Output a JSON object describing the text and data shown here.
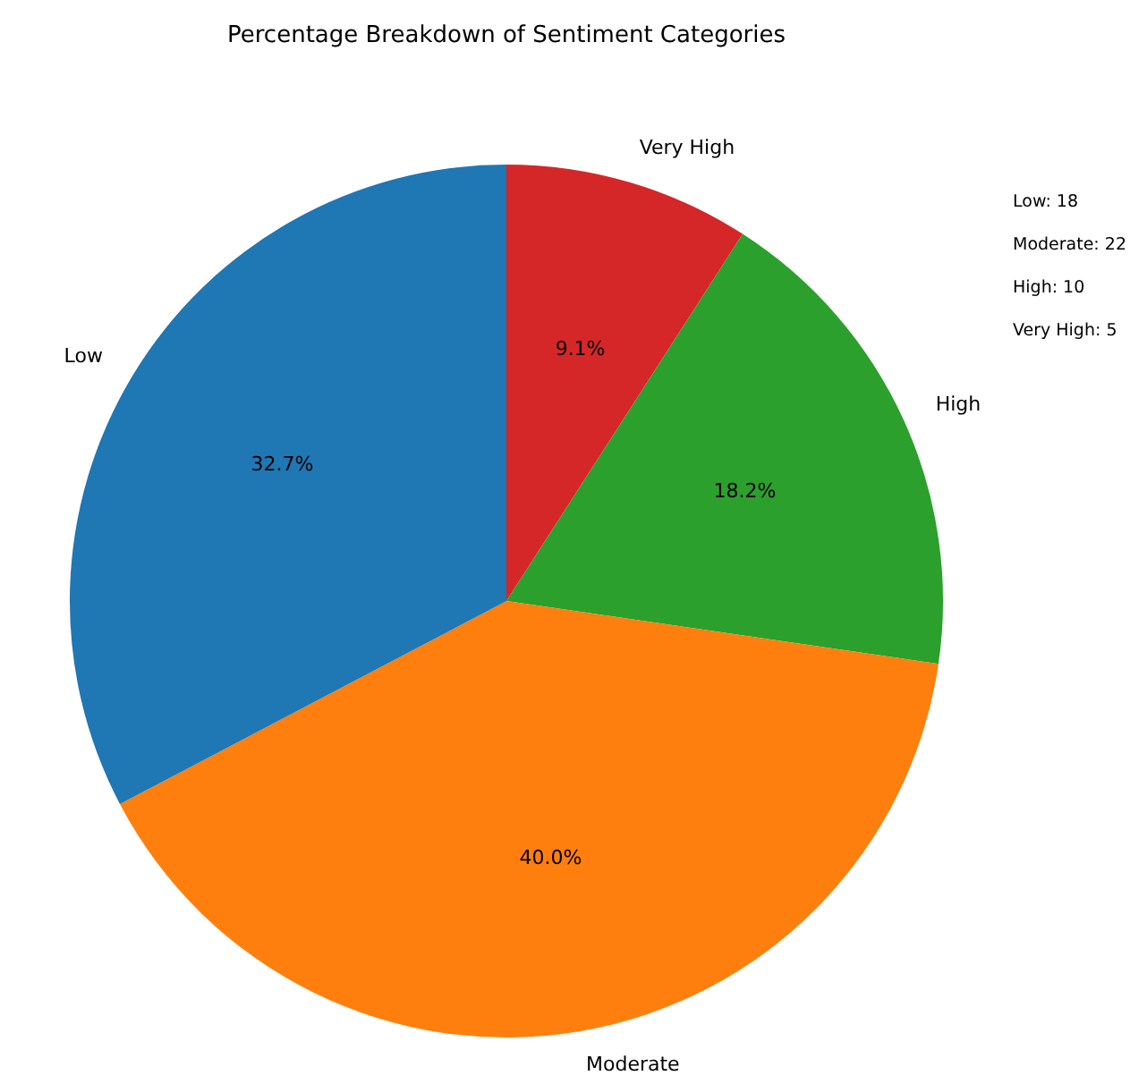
{
  "chart_data": {
    "type": "pie",
    "title": "Percentage Breakdown of Sentiment Categories",
    "categories": [
      "Low",
      "Moderate",
      "High",
      "Very High"
    ],
    "values": [
      32.7,
      40.0,
      18.2,
      9.1
    ],
    "colors": [
      "#1f77b4",
      "#ff7f0e",
      "#2ca02c",
      "#d62728"
    ],
    "value_labels": [
      "32.7%",
      "40.0%",
      "18.2%",
      "9.1%"
    ],
    "annotations": [
      "Low: 18",
      "Moderate: 22",
      "High: 10",
      "Very High: 5"
    ],
    "legend": false
  }
}
